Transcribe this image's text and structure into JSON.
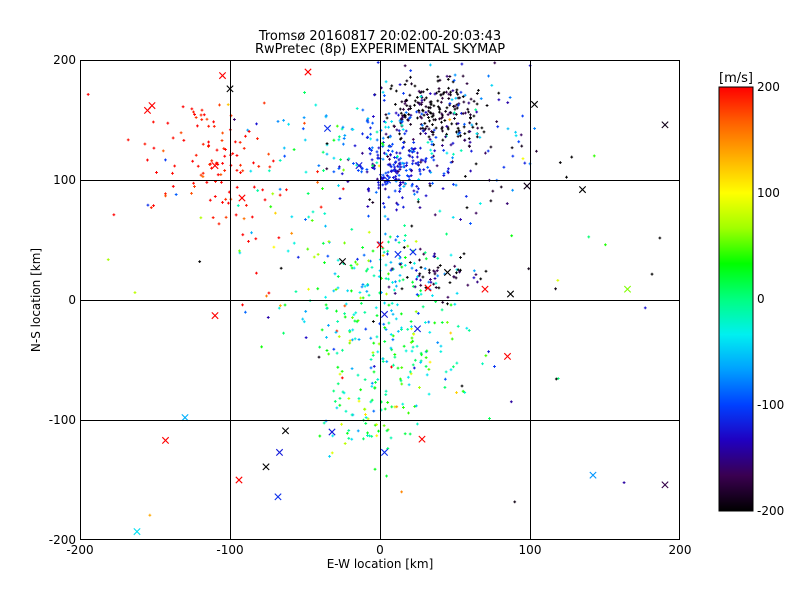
{
  "chart_data": {
    "type": "scatter",
    "title": "Tromsø 20160817 20:02:00-20:03:43",
    "subtitle": "RwPretec (8p) EXPERIMENTAL SKYMAP",
    "xlabel": "E-W location [km]",
    "ylabel": "N-S location [km]",
    "xlim": [
      -200,
      200
    ],
    "ylim": [
      -200,
      200
    ],
    "x_ticks": [
      "-200",
      "-100",
      "0",
      "100",
      "200"
    ],
    "y_ticks": [
      "-200",
      "-100",
      "0",
      "100",
      "200"
    ],
    "grid_lines": [
      -100,
      0,
      100
    ],
    "colorbar": {
      "label": "[m/s]",
      "range": [
        -200,
        200
      ],
      "ticks": [
        "200",
        "100",
        "0",
        "-100",
        "-200"
      ],
      "colormap": [
        "#000000",
        "#3a0050",
        "#2000c0",
        "#0040ff",
        "#00a0ff",
        "#00f0f0",
        "#00ff80",
        "#00ff00",
        "#a0ff00",
        "#ffff00",
        "#ffb000",
        "#ff6000",
        "#ff0000"
      ]
    },
    "clusters": [
      {
        "cx": 35,
        "cy": 158,
        "sx": 15,
        "sy": 14,
        "n": 210,
        "v": -195,
        "dv": 20
      },
      {
        "cx": 10,
        "cy": 112,
        "sx": 15,
        "sy": 14,
        "n": 190,
        "v": -120,
        "dv": 20
      },
      {
        "cx": 30,
        "cy": 145,
        "sx": 35,
        "sy": 25,
        "n": 110,
        "v": -110,
        "dv": 50
      },
      {
        "cx": -15,
        "cy": 130,
        "sx": 28,
        "sy": 22,
        "n": 70,
        "v": -40,
        "dv": 50
      },
      {
        "cx": -110,
        "cy": 125,
        "sx": 25,
        "sy": 22,
        "n": 90,
        "v": 195,
        "dv": 15
      },
      {
        "cx": -90,
        "cy": 80,
        "sx": 15,
        "sy": 20,
        "n": 25,
        "v": 200,
        "dv": 15
      },
      {
        "cx": 5,
        "cy": 25,
        "sx": 22,
        "sy": 18,
        "n": 110,
        "v": -20,
        "dv": 50
      },
      {
        "cx": 35,
        "cy": 22,
        "sx": 18,
        "sy": 12,
        "n": 55,
        "v": -185,
        "dv": 20
      },
      {
        "cx": 5,
        "cy": -35,
        "sx": 30,
        "sy": 25,
        "n": 180,
        "v": -10,
        "dv": 55
      },
      {
        "cx": -5,
        "cy": -95,
        "sx": 18,
        "sy": 15,
        "n": 60,
        "v": 15,
        "dv": 50
      },
      {
        "cx": -60,
        "cy": 40,
        "sx": 25,
        "sy": 40,
        "n": 45,
        "v": 30,
        "dv": 80
      },
      {
        "cx": 60,
        "cy": 120,
        "sx": 25,
        "sy": 30,
        "n": 50,
        "v": -160,
        "dv": 40
      },
      {
        "cx": 0,
        "cy": 0,
        "sx": 110,
        "sy": 110,
        "n": 70,
        "v": -20,
        "dv": 170
      }
    ],
    "markers_x": [
      {
        "x": -105,
        "y": 187,
        "v": 200
      },
      {
        "x": -48,
        "y": 190,
        "v": 200
      },
      {
        "x": -152,
        "y": 162,
        "v": 200
      },
      {
        "x": -155,
        "y": 158,
        "v": 200
      },
      {
        "x": -100,
        "y": 176,
        "v": -200
      },
      {
        "x": -110,
        "y": 112,
        "v": 200
      },
      {
        "x": -92,
        "y": 85,
        "v": 200
      },
      {
        "x": 5,
        "y": 100,
        "v": -110
      },
      {
        "x": -35,
        "y": 143,
        "v": -110
      },
      {
        "x": -14,
        "y": 112,
        "v": -120
      },
      {
        "x": 103,
        "y": 163,
        "v": -200
      },
      {
        "x": 135,
        "y": 92,
        "v": -200
      },
      {
        "x": 190,
        "y": 146,
        "v": -190
      },
      {
        "x": 98,
        "y": 95,
        "v": -190
      },
      {
        "x": 0,
        "y": 46,
        "v": 200
      },
      {
        "x": -25,
        "y": 32,
        "v": -200
      },
      {
        "x": 12,
        "y": 38,
        "v": -110
      },
      {
        "x": 22,
        "y": 40,
        "v": -110
      },
      {
        "x": 45,
        "y": 23,
        "v": -200
      },
      {
        "x": 32,
        "y": 10,
        "v": 200
      },
      {
        "x": 70,
        "y": 9,
        "v": 200
      },
      {
        "x": 87,
        "y": 5,
        "v": -200
      },
      {
        "x": 165,
        "y": 9,
        "v": 60
      },
      {
        "x": -110,
        "y": -13,
        "v": 200
      },
      {
        "x": 3,
        "y": -12,
        "v": -120
      },
      {
        "x": 25,
        "y": -24,
        "v": -120
      },
      {
        "x": 85,
        "y": -47,
        "v": 200
      },
      {
        "x": -130,
        "y": -98,
        "v": -60
      },
      {
        "x": -143,
        "y": -117,
        "v": 200
      },
      {
        "x": -63,
        "y": -109,
        "v": -200
      },
      {
        "x": -32,
        "y": -110,
        "v": -120
      },
      {
        "x": 28,
        "y": -116,
        "v": 200
      },
      {
        "x": -67,
        "y": -127,
        "v": -120
      },
      {
        "x": 3,
        "y": -127,
        "v": -110
      },
      {
        "x": -76,
        "y": -139,
        "v": -200
      },
      {
        "x": -94,
        "y": -150,
        "v": 200
      },
      {
        "x": 142,
        "y": -146,
        "v": -70
      },
      {
        "x": -68,
        "y": -164,
        "v": -110
      },
      {
        "x": 190,
        "y": -154,
        "v": -170
      },
      {
        "x": -162,
        "y": -193,
        "v": -40
      }
    ]
  }
}
